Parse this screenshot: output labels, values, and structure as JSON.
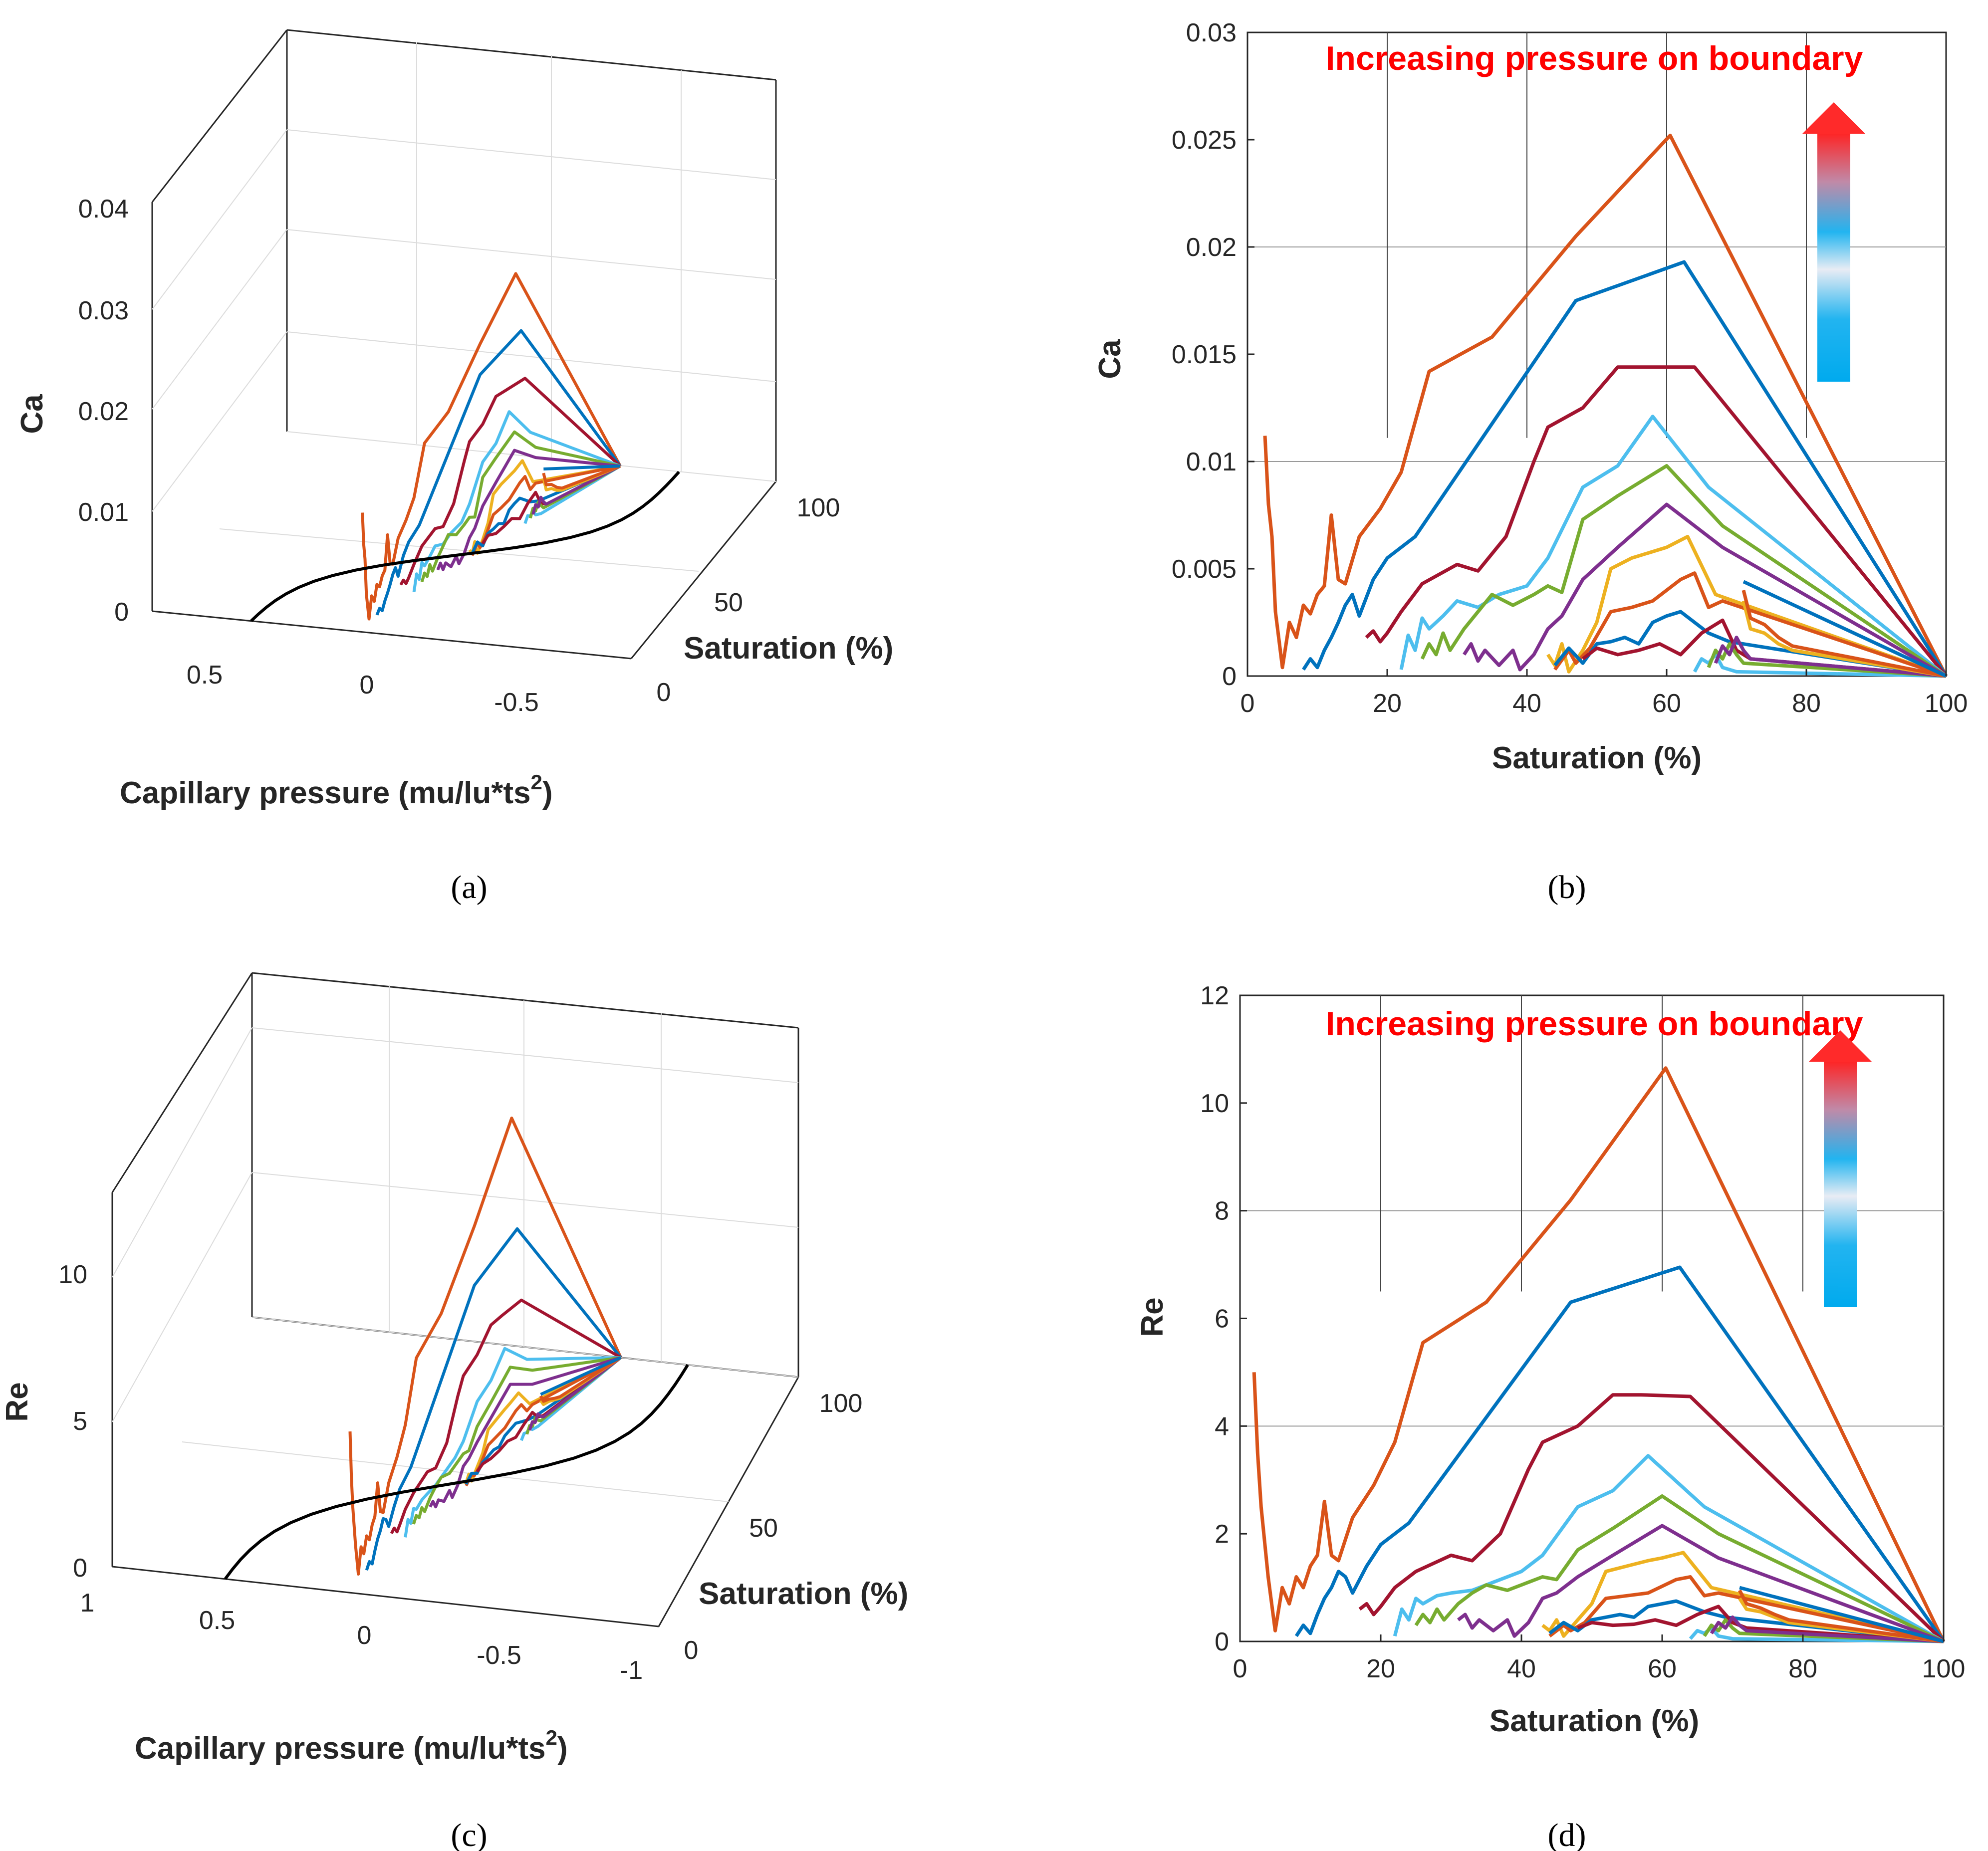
{
  "colors": {
    "orange": "#D95319",
    "blue": "#0072BD",
    "darkred": "#A2142F",
    "cyan": "#4DBEEE",
    "green": "#77AC30",
    "purple": "#7E2F8E",
    "yellow": "#EDB120",
    "black": "#000000",
    "annotation": "#FF0000"
  },
  "chart_data": [
    {
      "id": "a",
      "panel_label": "(a)",
      "type": "line3d",
      "xlabel": "Capillary pressure (mu/lu*ts",
      "xlabel_sup": "2",
      "xlabel_end": ")",
      "ylabel": "Saturation (%)",
      "zlabel": "Ca",
      "x_ticks": [
        "0.5",
        "0",
        "-0.5"
      ],
      "y_ticks": [
        "0",
        "50",
        "100"
      ],
      "z_ticks": [
        "0",
        "0.01",
        "0.02",
        "0.03",
        "0.04"
      ],
      "zlim": [
        0,
        0.04
      ],
      "series_description": "Ca vs saturation and capillary pressure for increasing boundary pressure; black curve is the capillary pressure-saturation relation on the floor"
    },
    {
      "id": "b",
      "panel_label": "(b)",
      "type": "line",
      "title": "",
      "xlabel": "Saturation (%)",
      "ylabel": "Ca",
      "xlim": [
        0,
        100
      ],
      "ylim": [
        0,
        0.03
      ],
      "x_ticks": [
        "0",
        "20",
        "40",
        "60",
        "80",
        "100"
      ],
      "y_ticks": [
        "0",
        "0.005",
        "0.01",
        "0.015",
        "0.02",
        "0.025",
        "0.03"
      ],
      "y_tick_values": [
        0,
        0.005,
        0.01,
        0.015,
        0.02,
        0.025,
        0.03
      ],
      "annotation": "Increasing pressure on boundary",
      "series": [
        {
          "name": "orange",
          "x": [
            2.5,
            3,
            3.5,
            4,
            5,
            6,
            7,
            8,
            9,
            10,
            11,
            12,
            13,
            14,
            16,
            19,
            22,
            26,
            35,
            47,
            60.5,
            100
          ],
          "y": [
            0.0112,
            0.008,
            0.0065,
            0.003,
            0.0004,
            0.0025,
            0.0018,
            0.0033,
            0.0029,
            0.0038,
            0.0042,
            0.0075,
            0.0045,
            0.0043,
            0.0065,
            0.0078,
            0.0095,
            0.0142,
            0.0158,
            0.0205,
            0.0252,
            0
          ]
        },
        {
          "name": "blue",
          "x": [
            8,
            9,
            10,
            11,
            12,
            13,
            14,
            15,
            16,
            18,
            20,
            24,
            47,
            62.5,
            100
          ],
          "y": [
            0.0003,
            0.0008,
            0.0004,
            0.0012,
            0.0018,
            0.0025,
            0.0033,
            0.0038,
            0.0028,
            0.0045,
            0.0055,
            0.0065,
            0.0175,
            0.0193,
            0
          ]
        },
        {
          "name": "darkred",
          "x": [
            17,
            18,
            19,
            20,
            22,
            25,
            30,
            33,
            37,
            41,
            43,
            48,
            53,
            57,
            64,
            100
          ],
          "y": [
            0.0018,
            0.0021,
            0.0016,
            0.002,
            0.003,
            0.0043,
            0.0052,
            0.0049,
            0.0065,
            0.01,
            0.0116,
            0.0125,
            0.0144,
            0.0144,
            0.0144,
            0
          ]
        },
        {
          "name": "cyan",
          "x": [
            22,
            23,
            24,
            25,
            26,
            28,
            30,
            33,
            36,
            40,
            43,
            48,
            53,
            58,
            66,
            100
          ],
          "y": [
            0.0003,
            0.0019,
            0.0012,
            0.0027,
            0.0022,
            0.0028,
            0.0035,
            0.0032,
            0.0038,
            0.0042,
            0.0055,
            0.0088,
            0.0098,
            0.0121,
            0.0088,
            0
          ]
        },
        {
          "name": "green",
          "x": [
            25,
            26,
            27,
            28,
            29,
            31,
            33,
            35,
            38,
            41,
            43,
            45,
            48,
            53,
            60,
            68,
            100
          ],
          "y": [
            0.0008,
            0.0015,
            0.001,
            0.002,
            0.0012,
            0.0022,
            0.003,
            0.0038,
            0.0033,
            0.0038,
            0.0042,
            0.0039,
            0.0073,
            0.0084,
            0.0098,
            0.007,
            0
          ]
        },
        {
          "name": "purple",
          "x": [
            31,
            32,
            33,
            34,
            36,
            38,
            39,
            41,
            43,
            45,
            48,
            53,
            60,
            68,
            100
          ],
          "y": [
            0.001,
            0.0015,
            0.0007,
            0.0012,
            0.0005,
            0.0012,
            0.0003,
            0.001,
            0.0022,
            0.0028,
            0.0045,
            0.006,
            0.008,
            0.006,
            0
          ]
        },
        {
          "name": "yellow",
          "x": [
            43,
            44,
            45,
            46,
            48,
            50,
            52,
            55,
            58,
            60,
            63,
            67,
            100
          ],
          "y": [
            0.001,
            0.0005,
            0.0015,
            0.0002,
            0.0012,
            0.0025,
            0.005,
            0.0055,
            0.0058,
            0.006,
            0.0065,
            0.0038,
            0
          ]
        },
        {
          "name": "orange2",
          "x": [
            44,
            46,
            47,
            49,
            52,
            55,
            58,
            62,
            64,
            66,
            68,
            100
          ],
          "y": [
            0.0003,
            0.0012,
            0.0006,
            0.0013,
            0.003,
            0.0032,
            0.0035,
            0.0045,
            0.0048,
            0.0032,
            0.0035,
            0
          ]
        },
        {
          "name": "blue2",
          "x": [
            44,
            46,
            48,
            50,
            52,
            54,
            56,
            58,
            60,
            62,
            64,
            66,
            69,
            100
          ],
          "y": [
            0.0005,
            0.0013,
            0.0006,
            0.0015,
            0.0016,
            0.0018,
            0.0015,
            0.0025,
            0.0028,
            0.003,
            0.0025,
            0.002,
            0.0016,
            0
          ]
        },
        {
          "name": "darkred2",
          "x": [
            48,
            50,
            53,
            56,
            59,
            62,
            65,
            68,
            70,
            72,
            100
          ],
          "y": [
            0.0008,
            0.0013,
            0.001,
            0.0012,
            0.0015,
            0.001,
            0.002,
            0.0026,
            0.0012,
            0.0008,
            0
          ]
        },
        {
          "name": "cyan2",
          "x": [
            64,
            65,
            66,
            67,
            68,
            70,
            100
          ],
          "y": [
            0.0002,
            0.0008,
            0.0006,
            0.001,
            0.0004,
            0.0002,
            0
          ]
        },
        {
          "name": "green2",
          "x": [
            66,
            67,
            68,
            69,
            70,
            71,
            100
          ],
          "y": [
            0.0004,
            0.0012,
            0.0008,
            0.0015,
            0.001,
            0.0006,
            0
          ]
        },
        {
          "name": "purple2",
          "x": [
            67,
            68,
            69,
            70,
            71,
            72,
            100
          ],
          "y": [
            0.0006,
            0.0014,
            0.001,
            0.0018,
            0.0012,
            0.0008,
            0
          ]
        },
        {
          "name": "yellow2",
          "x": [
            71,
            72,
            74,
            76,
            78,
            100
          ],
          "y": [
            0.0035,
            0.0022,
            0.002,
            0.0015,
            0.0012,
            0
          ]
        },
        {
          "name": "orange3",
          "x": [
            71,
            72,
            74,
            76,
            78,
            100
          ],
          "y": [
            0.004,
            0.0027,
            0.0024,
            0.0018,
            0.0014,
            0
          ]
        },
        {
          "name": "blue3",
          "x": [
            71,
            100
          ],
          "y": [
            0.0044,
            0
          ]
        }
      ]
    },
    {
      "id": "c",
      "panel_label": "(c)",
      "type": "line3d",
      "xlabel": "Capillary pressure (mu/lu*ts",
      "xlabel_sup": "2",
      "xlabel_end": ")",
      "ylabel": "Saturation (%)",
      "zlabel": "Re",
      "x_ticks": [
        "1",
        "0.5",
        "0",
        "-0.5",
        "-1"
      ],
      "y_ticks": [
        "0",
        "50",
        "100"
      ],
      "z_ticks": [
        "0",
        "5",
        "10"
      ],
      "series_description": "Re vs saturation and capillary pressure for increasing boundary pressure"
    },
    {
      "id": "d",
      "panel_label": "(d)",
      "type": "line",
      "title": "",
      "xlabel": "Saturation (%)",
      "ylabel": "Re",
      "xlim": [
        0,
        100
      ],
      "ylim": [
        0,
        12
      ],
      "x_ticks": [
        "0",
        "20",
        "40",
        "60",
        "80",
        "100"
      ],
      "y_ticks": [
        "0",
        "2",
        "4",
        "6",
        "8",
        "10",
        "12"
      ],
      "y_tick_values": [
        0,
        2,
        4,
        6,
        8,
        10,
        12
      ],
      "annotation": "Increasing pressure on boundary",
      "series": [
        {
          "name": "orange",
          "x": [
            2,
            2.5,
            3,
            4,
            5,
            6,
            7,
            8,
            9,
            10,
            11,
            12,
            13,
            14,
            16,
            19,
            22,
            26,
            35,
            47,
            60.5,
            100
          ],
          "y": [
            5.0,
            3.5,
            2.5,
            1.2,
            0.2,
            1.0,
            0.7,
            1.2,
            1.0,
            1.4,
            1.6,
            2.6,
            1.6,
            1.5,
            2.3,
            2.9,
            3.7,
            5.55,
            6.3,
            8.2,
            10.65,
            0
          ]
        },
        {
          "name": "blue",
          "x": [
            8,
            9,
            10,
            11,
            12,
            13,
            14,
            15,
            16,
            18,
            20,
            24,
            47,
            62.5,
            100
          ],
          "y": [
            0.1,
            0.3,
            0.15,
            0.5,
            0.8,
            1.0,
            1.3,
            1.2,
            0.9,
            1.4,
            1.8,
            2.2,
            6.3,
            6.95,
            0
          ]
        },
        {
          "name": "darkred",
          "x": [
            17,
            18,
            19,
            20,
            22,
            25,
            30,
            33,
            37,
            41,
            43,
            48,
            53,
            57,
            64,
            100
          ],
          "y": [
            0.6,
            0.7,
            0.5,
            0.65,
            1.0,
            1.3,
            1.6,
            1.5,
            2.0,
            3.2,
            3.7,
            4.0,
            4.58,
            4.58,
            4.55,
            0
          ]
        },
        {
          "name": "cyan",
          "x": [
            22,
            23,
            24,
            25,
            26,
            28,
            30,
            33,
            36,
            40,
            43,
            48,
            53,
            58,
            66,
            100
          ],
          "y": [
            0.1,
            0.6,
            0.4,
            0.8,
            0.7,
            0.85,
            0.9,
            0.95,
            1.1,
            1.3,
            1.6,
            2.5,
            2.8,
            3.45,
            2.5,
            0
          ]
        },
        {
          "name": "green",
          "x": [
            25,
            26,
            27,
            28,
            29,
            31,
            33,
            35,
            38,
            41,
            43,
            45,
            48,
            53,
            60,
            68,
            100
          ],
          "y": [
            0.3,
            0.5,
            0.35,
            0.6,
            0.4,
            0.7,
            0.9,
            1.05,
            0.95,
            1.1,
            1.2,
            1.15,
            1.7,
            2.1,
            2.7,
            2.0,
            0
          ]
        },
        {
          "name": "purple",
          "x": [
            31,
            32,
            33,
            34,
            36,
            38,
            39,
            41,
            43,
            45,
            48,
            53,
            60,
            68,
            100
          ],
          "y": [
            0.4,
            0.5,
            0.25,
            0.4,
            0.2,
            0.4,
            0.1,
            0.35,
            0.8,
            0.9,
            1.2,
            1.6,
            2.15,
            1.55,
            0
          ]
        },
        {
          "name": "yellow",
          "x": [
            43,
            44,
            45,
            46,
            48,
            50,
            52,
            55,
            58,
            60,
            63,
            67,
            100
          ],
          "y": [
            0.3,
            0.2,
            0.4,
            0.1,
            0.4,
            0.7,
            1.3,
            1.4,
            1.5,
            1.55,
            1.65,
            1.0,
            0
          ]
        },
        {
          "name": "orange2",
          "x": [
            44,
            46,
            47,
            49,
            52,
            55,
            58,
            62,
            64,
            66,
            68,
            100
          ],
          "y": [
            0.1,
            0.3,
            0.2,
            0.35,
            0.8,
            0.85,
            0.9,
            1.15,
            1.2,
            0.85,
            0.9,
            0
          ]
        },
        {
          "name": "blue2",
          "x": [
            44,
            46,
            48,
            50,
            52,
            54,
            56,
            58,
            60,
            62,
            64,
            66,
            69,
            100
          ],
          "y": [
            0.15,
            0.35,
            0.2,
            0.4,
            0.45,
            0.5,
            0.45,
            0.65,
            0.7,
            0.75,
            0.65,
            0.55,
            0.45,
            0
          ]
        },
        {
          "name": "darkred2",
          "x": [
            48,
            50,
            53,
            56,
            59,
            62,
            65,
            68,
            70,
            72,
            100
          ],
          "y": [
            0.25,
            0.35,
            0.3,
            0.32,
            0.4,
            0.3,
            0.5,
            0.65,
            0.35,
            0.25,
            0
          ]
        },
        {
          "name": "cyan2",
          "x": [
            64,
            65,
            66,
            67,
            68,
            70,
            100
          ],
          "y": [
            0.05,
            0.2,
            0.15,
            0.25,
            0.1,
            0.05,
            0
          ]
        },
        {
          "name": "green2",
          "x": [
            66,
            67,
            68,
            69,
            70,
            71,
            100
          ],
          "y": [
            0.1,
            0.3,
            0.2,
            0.4,
            0.25,
            0.15,
            0
          ]
        },
        {
          "name": "purple2",
          "x": [
            67,
            68,
            69,
            70,
            71,
            72,
            100
          ],
          "y": [
            0.15,
            0.35,
            0.25,
            0.45,
            0.3,
            0.2,
            0
          ]
        },
        {
          "name": "yellow2",
          "x": [
            71,
            72,
            74,
            76,
            78,
            100
          ],
          "y": [
            0.8,
            0.6,
            0.55,
            0.45,
            0.35,
            0
          ]
        },
        {
          "name": "orange3",
          "x": [
            71,
            72,
            74,
            76,
            78,
            100
          ],
          "y": [
            0.95,
            0.7,
            0.62,
            0.5,
            0.4,
            0
          ]
        },
        {
          "name": "blue3",
          "x": [
            71,
            100
          ],
          "y": [
            1.0,
            0
          ]
        }
      ]
    }
  ]
}
